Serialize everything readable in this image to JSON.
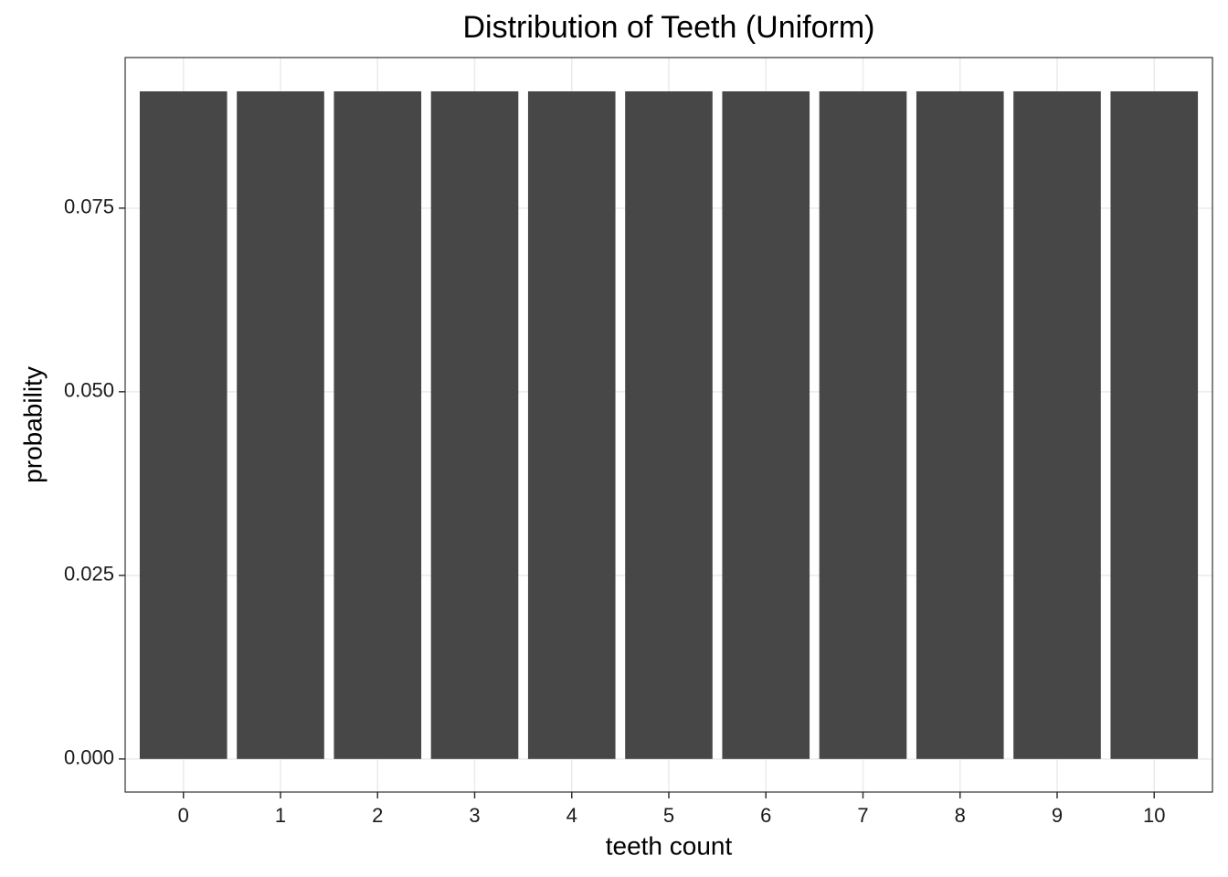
{
  "chart_data": {
    "type": "bar",
    "title": "Distribution of Teeth (Uniform)",
    "x_label": "teeth count",
    "y_label": "probability",
    "categories": [
      "0",
      "1",
      "2",
      "3",
      "4",
      "5",
      "6",
      "7",
      "8",
      "9",
      "10"
    ],
    "values": [
      0.0909,
      0.0909,
      0.0909,
      0.0909,
      0.0909,
      0.0909,
      0.0909,
      0.0909,
      0.0909,
      0.0909,
      0.0909
    ],
    "color": "#474747",
    "ylim": [
      -0.0045,
      0.0955
    ],
    "yticks": [
      {
        "value": 0,
        "label": "0.000"
      },
      {
        "value": 0.025,
        "label": "0.025"
      },
      {
        "value": 0.05,
        "label": "0.050"
      },
      {
        "value": 0.075,
        "label": "0.075"
      }
    ],
    "grid": true
  }
}
